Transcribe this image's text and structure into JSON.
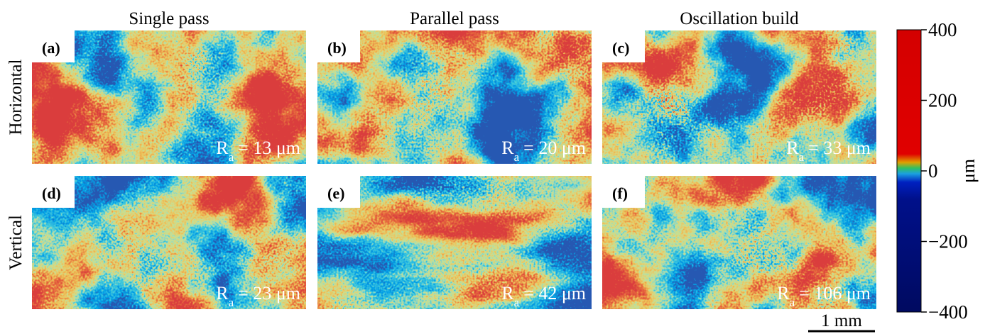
{
  "columns": [
    "Single pass",
    "Parallel pass",
    "Oscillation build"
  ],
  "rows": [
    "Horizontal",
    "Vertical"
  ],
  "ra_symbol": "R",
  "ra_subscript": "a",
  "panels": [
    {
      "label": "(a)",
      "ra": "= 13 μm"
    },
    {
      "label": "(b)",
      "ra": "= 20 μm"
    },
    {
      "label": "(c)",
      "ra": "= 33 μm"
    },
    {
      "label": "(d)",
      "ra": "= 23 μm"
    },
    {
      "label": "(e)",
      "ra": "= 42 μm"
    },
    {
      "label": "(f)",
      "ra": "= 106 μm"
    }
  ],
  "colorbar": {
    "lim": [
      -400,
      400
    ],
    "ticks": [
      400,
      200,
      0,
      {
        "value": -200,
        "label": "−200"
      },
      {
        "value": -400,
        "label": "−400"
      }
    ],
    "label": "μm"
  },
  "scale_bar": "1 mm"
}
